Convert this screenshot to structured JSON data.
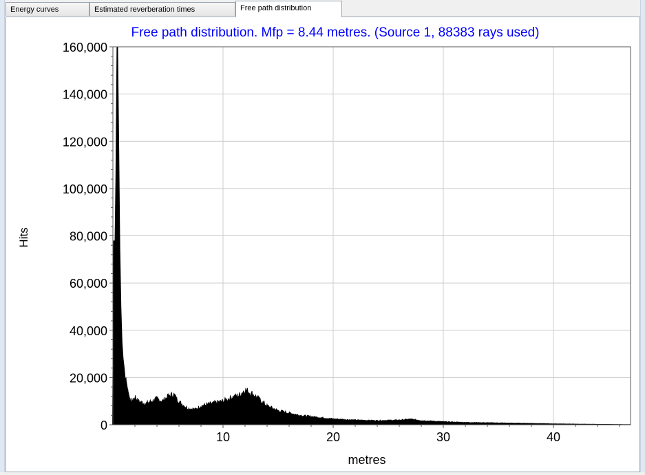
{
  "tabs": [
    {
      "label": "Energy curves",
      "active": false
    },
    {
      "label": "Estimated reverberation times",
      "active": false
    },
    {
      "label": "Free path distribution",
      "active": true
    }
  ],
  "colors": {
    "title": "#0000ff",
    "fill": "#000000",
    "grid": "#cccccc"
  },
  "chart_data": {
    "type": "area",
    "title": "Free path distribution. Mfp = 8.44 metres. (Source 1, 88383 rays used)",
    "xlabel": "metres",
    "ylabel": "Hits",
    "xlim": [
      0,
      47
    ],
    "ylim": [
      0,
      160000
    ],
    "x_ticks": [
      10,
      20,
      30,
      40
    ],
    "x_tick_labels": [
      "10",
      "20",
      "30",
      "40"
    ],
    "y_ticks": [
      0,
      20000,
      40000,
      60000,
      80000,
      100000,
      120000,
      140000,
      160000
    ],
    "y_tick_labels": [
      "0",
      "20,000",
      "40,000",
      "60,000",
      "80,000",
      "100,000",
      "120,000",
      "140,000",
      "160,000"
    ],
    "grid": true,
    "series": [
      {
        "x": [
          0,
          0.1,
          0.2,
          0.3,
          0.4,
          0.5,
          0.6,
          0.7,
          0.8,
          0.9,
          1.0,
          1.1,
          1.2,
          1.3,
          1.5,
          1.7,
          2.0,
          2.3,
          2.6,
          3.0,
          3.5,
          4.0,
          4.5,
          5.0,
          5.5,
          5.8,
          6.2,
          6.8,
          7.5,
          8.0,
          8.5,
          9.0,
          9.5,
          10.0,
          10.5,
          11.0,
          11.5,
          12.0,
          12.3,
          12.7,
          13.0,
          13.5,
          14.0,
          15.0,
          16.0,
          17.0,
          18.0,
          19.0,
          20.0,
          22.0,
          24.0,
          26.0,
          27.0,
          28.0,
          30.0,
          32.0,
          35.0,
          38.0,
          40.0,
          42.0,
          44.0,
          47.0
        ],
        "y": [
          0,
          78000,
          70000,
          105000,
          160000,
          120000,
          75000,
          50000,
          35000,
          28000,
          24000,
          19000,
          18000,
          15000,
          11000,
          10000,
          12000,
          10000,
          9500,
          9000,
          10000,
          11000,
          10000,
          12000,
          13000,
          11000,
          9000,
          7000,
          6500,
          8000,
          8500,
          9000,
          9500,
          10000,
          11000,
          12000,
          12500,
          15000,
          14000,
          13000,
          12000,
          10000,
          8000,
          6000,
          5000,
          4000,
          3500,
          3000,
          2500,
          2000,
          1800,
          2000,
          2400,
          1800,
          1300,
          1000,
          800,
          600,
          400,
          300,
          200,
          100
        ]
      }
    ]
  }
}
